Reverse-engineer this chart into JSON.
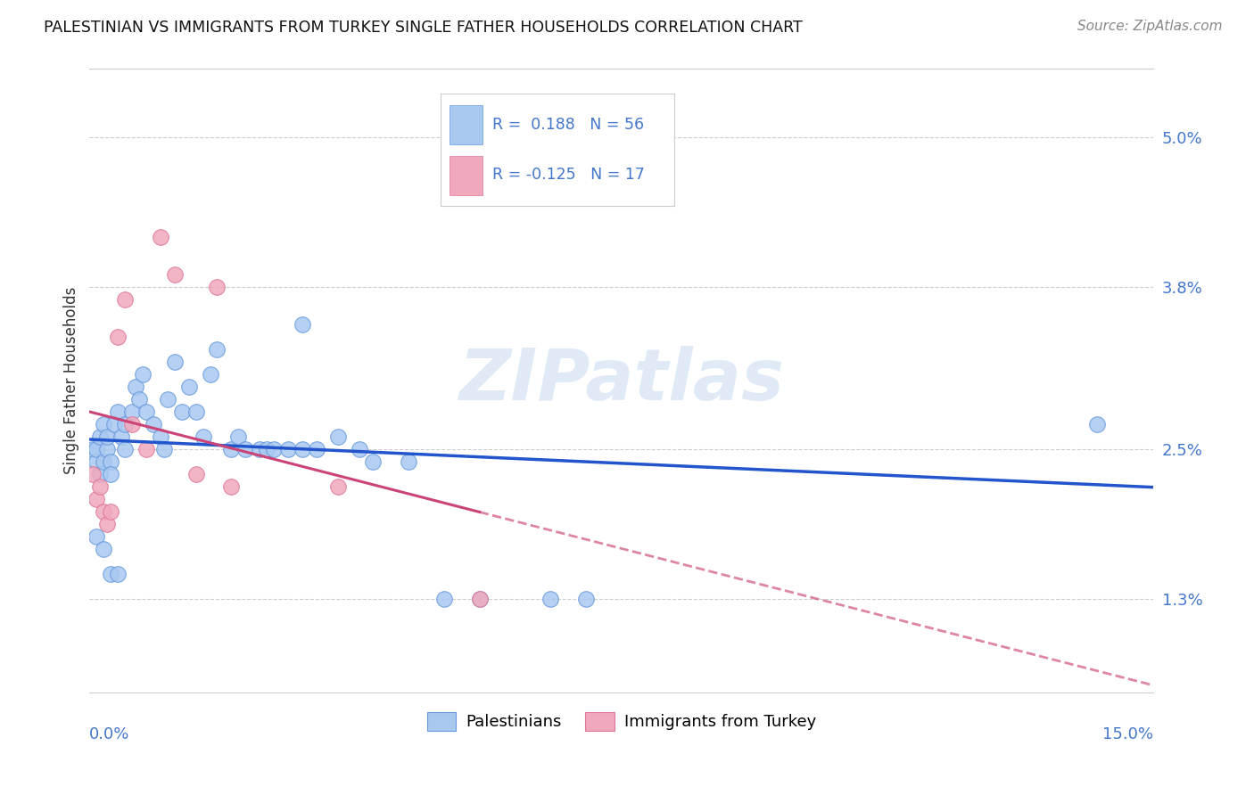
{
  "title": "PALESTINIAN VS IMMIGRANTS FROM TURKEY SINGLE FATHER HOUSEHOLDS CORRELATION CHART",
  "source": "Source: ZipAtlas.com",
  "ylabel": "Single Father Households",
  "yticks": [
    1.3,
    2.5,
    3.8,
    5.0
  ],
  "ytick_labels": [
    "1.3%",
    "2.5%",
    "3.8%",
    "5.0%"
  ],
  "xlim": [
    0.0,
    15.0
  ],
  "ylim": [
    0.55,
    5.55
  ],
  "blue_color": "#a8c8f0",
  "pink_color": "#f0a8bc",
  "line_blue": "#2255cc",
  "line_pink": "#cc4477",
  "watermark": "ZIPatlas",
  "palestinians_x": [
    0.05,
    0.1,
    0.1,
    0.15,
    0.15,
    0.2,
    0.2,
    0.25,
    0.25,
    0.3,
    0.3,
    0.35,
    0.4,
    0.45,
    0.5,
    0.5,
    0.6,
    0.65,
    0.7,
    0.75,
    0.8,
    0.9,
    1.0,
    1.05,
    1.1,
    1.2,
    1.3,
    1.4,
    1.5,
    1.6,
    1.7,
    1.8,
    2.0,
    2.1,
    2.2,
    2.4,
    2.5,
    2.6,
    2.8,
    3.0,
    3.0,
    3.2,
    3.5,
    3.8,
    4.0,
    4.5,
    5.0,
    5.5,
    6.5,
    7.0,
    0.1,
    0.2,
    0.3,
    0.4,
    14.2,
    5.5
  ],
  "palestinians_y": [
    2.5,
    2.4,
    2.5,
    2.3,
    2.6,
    2.4,
    2.7,
    2.5,
    2.6,
    2.4,
    2.3,
    2.7,
    2.8,
    2.6,
    2.7,
    2.5,
    2.8,
    3.0,
    2.9,
    3.1,
    2.8,
    2.7,
    2.6,
    2.5,
    2.9,
    3.2,
    2.8,
    3.0,
    2.8,
    2.6,
    3.1,
    3.3,
    2.5,
    2.6,
    2.5,
    2.5,
    2.5,
    2.5,
    2.5,
    3.5,
    2.5,
    2.5,
    2.6,
    2.5,
    2.4,
    2.4,
    1.3,
    1.3,
    1.3,
    1.3,
    1.8,
    1.7,
    1.5,
    1.5,
    2.7,
    4.6
  ],
  "turkey_x": [
    0.05,
    0.1,
    0.15,
    0.2,
    0.25,
    0.3,
    0.4,
    0.5,
    0.6,
    0.8,
    1.0,
    1.2,
    1.5,
    1.8,
    2.0,
    3.5,
    5.5
  ],
  "turkey_y": [
    2.3,
    2.1,
    2.2,
    2.0,
    1.9,
    2.0,
    3.4,
    3.7,
    2.7,
    2.5,
    4.2,
    3.9,
    2.3,
    3.8,
    2.2,
    2.2,
    1.3
  ]
}
